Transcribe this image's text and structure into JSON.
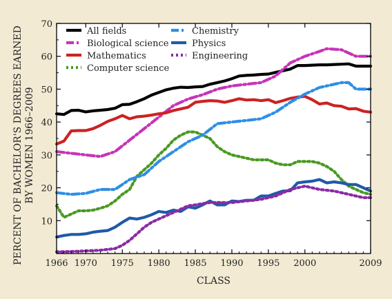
{
  "chart_data": {
    "type": "line",
    "title": "",
    "xlabel": "CLASS",
    "ylabel": "PERCENT OF BACHELOR'S DEGREES EARNED BY WOMEN 1966–2009",
    "xlim": [
      1966,
      2009
    ],
    "ylim": [
      0,
      70
    ],
    "x_ticks": [
      1966,
      1970,
      1975,
      1980,
      1985,
      1990,
      1995,
      2000,
      2009
    ],
    "y_ticks": [
      10,
      20,
      30,
      40,
      50,
      60,
      70
    ],
    "legend_position": "top-left",
    "grid": false,
    "series": [
      {
        "name": "All fields",
        "color": "#000000",
        "style": "solid",
        "x": [
          1966,
          1967,
          1968,
          1969,
          1970,
          1971,
          1972,
          1973,
          1974,
          1975,
          1976,
          1977,
          1978,
          1979,
          1980,
          1981,
          1982,
          1983,
          1984,
          1985,
          1986,
          1987,
          1988,
          1989,
          1990,
          1991,
          1992,
          1993,
          1994,
          1995,
          1996,
          1997,
          1998,
          1999,
          2000,
          2001,
          2002,
          2003,
          2004,
          2005,
          2006,
          2007,
          2008,
          2009
        ],
        "values": [
          42.5,
          42.3,
          43.5,
          43.6,
          43.1,
          43.4,
          43.6,
          43.8,
          44.2,
          45.3,
          45.4,
          46.2,
          47.1,
          48.2,
          49.0,
          49.8,
          50.3,
          50.6,
          50.5,
          50.7,
          50.8,
          51.5,
          52.0,
          52.5,
          53.2,
          54.0,
          54.2,
          54.3,
          54.5,
          54.6,
          55.1,
          55.6,
          56.1,
          57.2,
          57.2,
          57.3,
          57.4,
          57.4,
          57.5,
          57.6,
          57.7,
          57.0,
          57.0,
          57.0
        ]
      },
      {
        "name": "Biological science",
        "color": "#c733b8",
        "style": "dashdot",
        "x": [
          1966,
          1970,
          1972,
          1974,
          1976,
          1978,
          1980,
          1982,
          1984,
          1986,
          1988,
          1990,
          1992,
          1994,
          1996,
          1998,
          2000,
          2002,
          2003,
          2005,
          2007,
          2009
        ],
        "values": [
          31.0,
          30.0,
          29.5,
          31.0,
          34.5,
          38.0,
          41.5,
          45.0,
          47.0,
          48.3,
          50.0,
          51.0,
          51.5,
          52.0,
          54.0,
          58.0,
          60.0,
          61.5,
          62.3,
          62.0,
          60.0,
          60.0
        ]
      },
      {
        "name": "Mathematics",
        "color": "#cc2222",
        "style": "solid",
        "x": [
          1966,
          1967,
          1968,
          1969,
          1970,
          1971,
          1972,
          1973,
          1974,
          1975,
          1976,
          1977,
          1978,
          1979,
          1980,
          1981,
          1982,
          1983,
          1984,
          1985,
          1986,
          1987,
          1988,
          1989,
          1990,
          1991,
          1992,
          1993,
          1994,
          1995,
          1996,
          1997,
          1998,
          1999,
          2000,
          2001,
          2002,
          2003,
          2004,
          2005,
          2006,
          2007,
          2008,
          2009
        ],
        "values": [
          33.3,
          34.2,
          37.3,
          37.4,
          37.4,
          38.0,
          39.0,
          40.2,
          41.0,
          42.0,
          41.0,
          41.6,
          41.8,
          42.1,
          42.5,
          42.8,
          43.5,
          44.0,
          44.5,
          46.0,
          46.3,
          46.5,
          46.4,
          46.0,
          46.5,
          47.1,
          46.7,
          46.8,
          46.5,
          46.8,
          45.9,
          46.5,
          47.2,
          47.6,
          47.8,
          46.8,
          45.5,
          45.8,
          45.0,
          44.8,
          44.0,
          44.1,
          43.3,
          43.0
        ]
      },
      {
        "name": "Computer science",
        "color": "#4a9a22",
        "style": "dotted",
        "x": [
          1966,
          1967,
          1968,
          1969,
          1970,
          1971,
          1972,
          1973,
          1974,
          1975,
          1976,
          1977,
          1978,
          1979,
          1980,
          1981,
          1982,
          1983,
          1984,
          1985,
          1986,
          1987,
          1988,
          1989,
          1990,
          1991,
          1992,
          1993,
          1994,
          1995,
          1996,
          1997,
          1998,
          1999,
          2000,
          2001,
          2002,
          2003,
          2004,
          2005,
          2006,
          2007,
          2008,
          2009
        ],
        "values": [
          14.5,
          11.0,
          12.0,
          13.0,
          13.0,
          13.2,
          13.8,
          14.5,
          16.0,
          18.0,
          19.5,
          23.5,
          25.5,
          27.5,
          30.0,
          32.0,
          34.5,
          36.0,
          37.0,
          37.0,
          36.0,
          35.0,
          32.5,
          31.0,
          30.0,
          29.5,
          29.0,
          28.5,
          28.5,
          28.5,
          27.5,
          27.0,
          27.0,
          28.0,
          28.0,
          28.0,
          27.5,
          26.5,
          25.0,
          22.5,
          20.5,
          19.5,
          18.5,
          18.0
        ]
      },
      {
        "name": "Chemistry",
        "color": "#2e8ee6",
        "style": "dashdot",
        "x": [
          1966,
          1968,
          1970,
          1972,
          1974,
          1976,
          1978,
          1980,
          1982,
          1984,
          1986,
          1988,
          1990,
          1992,
          1994,
          1996,
          1998,
          2000,
          2002,
          2003,
          2004,
          2005,
          2006,
          2007,
          2009
        ],
        "values": [
          18.5,
          18.0,
          18.3,
          19.5,
          19.5,
          22.5,
          24.0,
          28.0,
          31.0,
          34.0,
          36.0,
          39.5,
          40.0,
          40.5,
          41.0,
          43.0,
          46.0,
          48.5,
          50.5,
          51.0,
          51.5,
          52.0,
          52.0,
          50.0,
          50.0
        ]
      },
      {
        "name": "Physics",
        "color": "#1f5aa8",
        "style": "solid",
        "x": [
          1966,
          1967,
          1968,
          1969,
          1970,
          1971,
          1972,
          1973,
          1974,
          1975,
          1976,
          1977,
          1978,
          1979,
          1980,
          1981,
          1982,
          1983,
          1984,
          1985,
          1986,
          1987,
          1988,
          1989,
          1990,
          1991,
          1992,
          1993,
          1994,
          1995,
          1996,
          1997,
          1998,
          1999,
          2000,
          2001,
          2002,
          2003,
          2004,
          2005,
          2006,
          2007,
          2008,
          2009
        ],
        "values": [
          5.0,
          5.5,
          5.8,
          5.8,
          6.0,
          6.5,
          6.8,
          7.0,
          8.0,
          9.5,
          10.8,
          10.5,
          11.0,
          11.8,
          12.8,
          12.5,
          13.2,
          12.8,
          14.2,
          13.8,
          14.8,
          16.0,
          14.8,
          14.8,
          16.0,
          15.8,
          16.2,
          16.2,
          17.5,
          17.5,
          18.3,
          19.0,
          19.1,
          21.5,
          21.8,
          22.0,
          22.5,
          21.5,
          21.8,
          21.5,
          21.0,
          21.0,
          20.0,
          19.0
        ]
      },
      {
        "name": "Engineering",
        "color": "#8a2ba6",
        "style": "dotted",
        "x": [
          1966,
          1968,
          1970,
          1972,
          1974,
          1975,
          1976,
          1977,
          1978,
          1979,
          1980,
          1981,
          1982,
          1983,
          1984,
          1985,
          1986,
          1987,
          1988,
          1990,
          1992,
          1994,
          1996,
          1998,
          2000,
          2002,
          2004,
          2006,
          2008,
          2009
        ],
        "values": [
          0.5,
          0.6,
          0.8,
          1.0,
          1.5,
          2.5,
          4.0,
          6.0,
          8.0,
          9.5,
          10.5,
          11.5,
          12.5,
          13.5,
          14.5,
          14.8,
          15.2,
          15.5,
          15.5,
          15.5,
          16.0,
          16.5,
          17.5,
          19.5,
          20.5,
          19.5,
          19.0,
          18.0,
          17.0,
          17.0
        ]
      }
    ]
  }
}
